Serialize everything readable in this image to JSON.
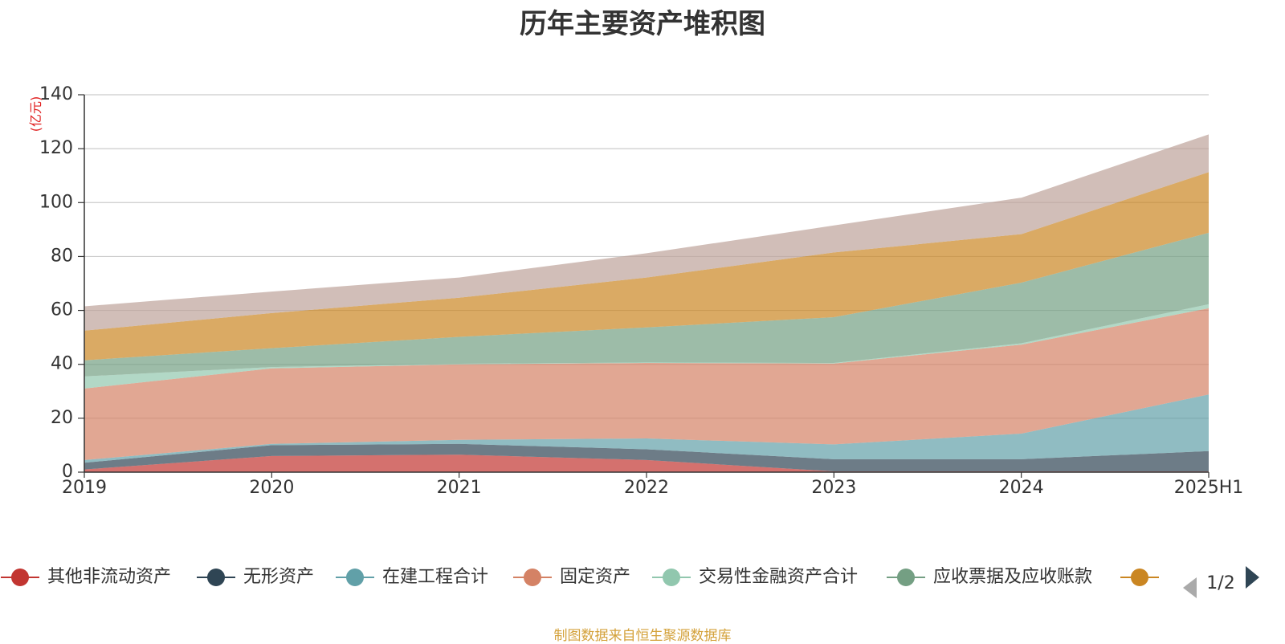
{
  "chart_data": {
    "type": "area",
    "stacked": true,
    "title": "历年主要资产堆积图",
    "unit_label": "(亿元)",
    "categories": [
      "2019",
      "2020",
      "2021",
      "2022",
      "2023",
      "2024",
      "2025H1"
    ],
    "ylim": [
      0,
      140
    ],
    "yticks": [
      "0",
      "20",
      "40",
      "60",
      "80",
      "100",
      "120",
      "140"
    ],
    "grid": true,
    "legend_position": "bottom",
    "legend_page": "1/2",
    "series": [
      {
        "name": "其他非流动资产",
        "color": "#c23531",
        "values": [
          1.0,
          6.0,
          6.5,
          4.5,
          0.3,
          0.3,
          0.3
        ]
      },
      {
        "name": "无形资产",
        "color": "#2f4554",
        "values": [
          2.5,
          4.0,
          4.0,
          4.0,
          4.5,
          4.5,
          7.5
        ]
      },
      {
        "name": "在建工程合计",
        "color": "#61a0a8",
        "values": [
          1.0,
          0.5,
          1.5,
          4.0,
          5.5,
          9.5,
          21.0
        ]
      },
      {
        "name": "固定资产",
        "color": "#d48265",
        "values": [
          26.5,
          28.0,
          28.0,
          28.0,
          30.0,
          33.0,
          32.0
        ]
      },
      {
        "name": "交易性金融资产合计",
        "color": "#91c7ae",
        "values": [
          4.5,
          0.5,
          0.2,
          0.2,
          0.2,
          0.5,
          1.5
        ]
      },
      {
        "name": "应收票据及应收账款",
        "color": "#749f83",
        "values": [
          6.0,
          7.0,
          10.0,
          13.0,
          17.0,
          22.5,
          26.5
        ]
      },
      {
        "name": "",
        "color": "#ca8622",
        "values": [
          11.0,
          13.0,
          14.5,
          18.5,
          24.0,
          18.0,
          22.5
        ]
      },
      {
        "name": "",
        "color": "#bda29a",
        "values": [
          9.0,
          8.0,
          7.5,
          9.0,
          10.0,
          13.5,
          14.0
        ]
      }
    ],
    "source_note": "制图数据来自恒生聚源数据库"
  }
}
